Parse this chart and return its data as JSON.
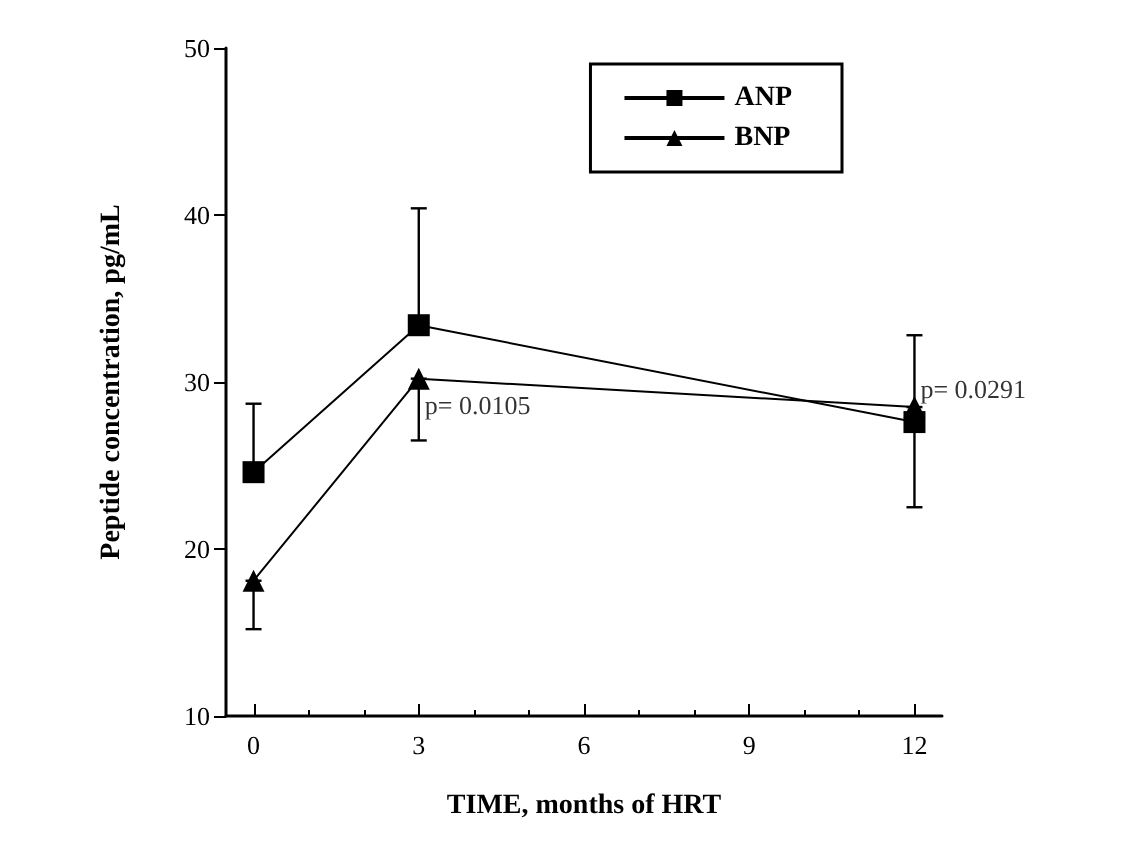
{
  "chart_data": {
    "type": "line",
    "xlabel": "TIME, months of HRT",
    "ylabel": "Peptide concentration, pg/mL",
    "x": [
      0,
      3,
      12
    ],
    "xlim": [
      -0.5,
      12.5
    ],
    "xticks": [
      0,
      3,
      6,
      9,
      12
    ],
    "ylim": [
      10,
      50
    ],
    "yticks": [
      10,
      20,
      30,
      40,
      50
    ],
    "series": [
      {
        "name": "ANP",
        "color": "#000000",
        "marker": "square",
        "values": [
          24.6,
          33.4,
          27.6
        ],
        "errors": [
          [
            24.6,
            28.7
          ],
          [
            33.4,
            40.4
          ],
          [
            27.6,
            32.8
          ]
        ]
      },
      {
        "name": "BNP",
        "color": "#000000",
        "marker": "triangle",
        "values": [
          18.1,
          30.2,
          28.5
        ],
        "errors": [
          [
            15.2,
            18.1
          ],
          [
            26.5,
            30.2
          ],
          [
            22.5,
            28.5
          ]
        ]
      }
    ],
    "annotations": [
      {
        "text": "p= 0.0105",
        "x": 3,
        "y": 28.6
      },
      {
        "text": "p= 0.0291",
        "x": 12,
        "y": 29.6
      }
    ],
    "legend": "top right",
    "grid": false
  }
}
